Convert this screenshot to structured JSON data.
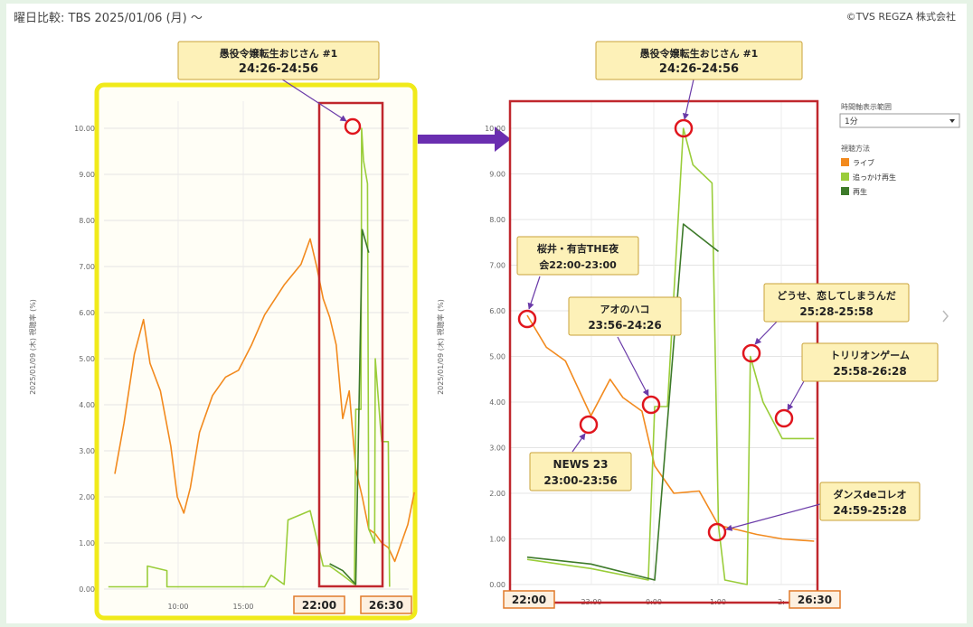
{
  "header": {
    "title": "曜日比較: TBS 2025/01/06 (月) ～",
    "copyright": "©TVS REGZA 株式会社"
  },
  "legend": {
    "range_label": "時間軸表示範囲",
    "range_value": "1分",
    "method_label": "視聴方法",
    "items": [
      {
        "name": "ライブ",
        "color": "#f28a1e"
      },
      {
        "name": "追っかけ再生",
        "color": "#9acd3a"
      },
      {
        "name": "再生",
        "color": "#3d7a2a"
      }
    ]
  },
  "left_chart": {
    "ylabel": "2025/01/09 (木)    視聴率 (%)",
    "yticks": [
      "0.00",
      "1.00",
      "2.00",
      "3.00",
      "4.00",
      "5.00",
      "6.00",
      "7.00",
      "8.00",
      "9.00",
      "10.00"
    ],
    "xticks": [
      "10:00",
      "15:00"
    ],
    "marker_start": "22:00",
    "marker_end": "26:30",
    "callout": {
      "line1": "愚役令嬢転生おじさん #1",
      "line2": "24:26-24:56"
    }
  },
  "right_chart": {
    "ylabel": "2025/01/09 (木)    視聴率 (%)",
    "yticks": [
      "0.00",
      "1.00",
      "2.00",
      "3.00",
      "4.00",
      "5.00",
      "6.00",
      "7.00",
      "8.00",
      "9.00",
      "10.00"
    ],
    "xticks": [
      "23:00",
      "0:00",
      "1:00",
      "2:"
    ],
    "marker_start": "22:00",
    "marker_end": "26:30",
    "callouts": [
      {
        "line1": "愚役令嬢転生おじさん #1",
        "line2": "24:26-24:56"
      },
      {
        "line1": "桜井・有吉THE夜",
        "line2": "会22:00-23:00"
      },
      {
        "line1": "アオのハコ",
        "line2": "23:56-24:26"
      },
      {
        "line1": "NEWS 23",
        "line2": "23:00-23:56"
      },
      {
        "line1": "どうせ、恋してしまうんだ",
        "line2": "25:28-25:58"
      },
      {
        "line1": "トリリオンゲーム",
        "line2": "25:58-26:28"
      },
      {
        "line1": "ダンスdeコレオ",
        "line2": "24:59-25:28"
      }
    ]
  },
  "chart_data": [
    {
      "type": "line",
      "ylabel": "視聴率 (%)",
      "ylim": [
        0,
        10.5
      ],
      "x_unit": "hours (5 = 5:00 start, 26.5 = 26:30)",
      "series": [
        {
          "name": "ライブ",
          "color": "#f28a1e",
          "points": [
            [
              5.5,
              2.5
            ],
            [
              6.2,
              3.6
            ],
            [
              7.0,
              5.1
            ],
            [
              7.7,
              5.85
            ],
            [
              8.2,
              4.9
            ],
            [
              9.0,
              4.3
            ],
            [
              9.8,
              3.1
            ],
            [
              10.3,
              2.0
            ],
            [
              10.8,
              1.65
            ],
            [
              11.3,
              2.2
            ],
            [
              12.0,
              3.4
            ],
            [
              13.0,
              4.2
            ],
            [
              14.0,
              4.6
            ],
            [
              15.0,
              4.75
            ],
            [
              16.0,
              5.3
            ],
            [
              17.0,
              5.95
            ],
            [
              18.5,
              6.6
            ],
            [
              19.8,
              7.05
            ],
            [
              20.5,
              7.6
            ],
            [
              21.0,
              7.0
            ],
            [
              21.5,
              6.3
            ],
            [
              22.0,
              5.9
            ],
            [
              22.5,
              5.3
            ],
            [
              23.0,
              3.7
            ],
            [
              23.5,
              4.3
            ],
            [
              24.0,
              2.6
            ],
            [
              24.5,
              2.0
            ],
            [
              25.0,
              1.3
            ],
            [
              25.5,
              1.2
            ],
            [
              26.0,
              1.0
            ],
            [
              26.5,
              0.9
            ],
            [
              27.0,
              0.6
            ],
            [
              28.0,
              1.4
            ],
            [
              28.5,
              2.1
            ]
          ]
        },
        {
          "name": "追っかけ再生",
          "color": "#9acd3a",
          "points": [
            [
              5.0,
              0.05
            ],
            [
              8.0,
              0.05
            ],
            [
              8.0,
              0.5
            ],
            [
              9.5,
              0.4
            ],
            [
              9.5,
              0.05
            ],
            [
              17.0,
              0.05
            ],
            [
              17.5,
              0.3
            ],
            [
              18.5,
              0.1
            ],
            [
              18.8,
              1.5
            ],
            [
              20.5,
              1.7
            ],
            [
              21.5,
              0.5
            ],
            [
              22.0,
              0.5
            ],
            [
              23.0,
              0.3
            ],
            [
              23.9,
              0.1
            ],
            [
              24.0,
              3.9
            ],
            [
              24.4,
              3.9
            ],
            [
              24.45,
              10.0
            ],
            [
              24.6,
              9.3
            ],
            [
              24.9,
              8.8
            ],
            [
              25.0,
              1.3
            ],
            [
              25.45,
              1.0
            ],
            [
              25.5,
              5.0
            ],
            [
              25.9,
              3.5
            ],
            [
              26.0,
              3.2
            ],
            [
              26.5,
              3.2
            ],
            [
              26.6,
              0.05
            ]
          ]
        },
        {
          "name": "再生",
          "color": "#3d7a2a",
          "points": [
            [
              22.0,
              0.55
            ],
            [
              23.0,
              0.4
            ],
            [
              24.0,
              0.1
            ],
            [
              24.5,
              7.8
            ],
            [
              25.0,
              7.3
            ]
          ]
        }
      ]
    },
    {
      "type": "line",
      "ylabel": "視聴率 (%)",
      "ylim": [
        0,
        10.5
      ],
      "x_unit": "hours (22:00 to 26:30)",
      "series": [
        {
          "name": "ライブ",
          "color": "#f28a1e",
          "points": [
            [
              22.0,
              5.9
            ],
            [
              22.3,
              5.2
            ],
            [
              22.6,
              4.9
            ],
            [
              23.0,
              3.7
            ],
            [
              23.3,
              4.5
            ],
            [
              23.5,
              4.1
            ],
            [
              23.8,
              3.8
            ],
            [
              24.0,
              2.6
            ],
            [
              24.3,
              2.0
            ],
            [
              24.7,
              2.05
            ],
            [
              25.0,
              1.3
            ],
            [
              25.3,
              1.2
            ],
            [
              25.6,
              1.1
            ],
            [
              26.0,
              1.0
            ],
            [
              26.5,
              0.95
            ]
          ]
        },
        {
          "name": "追っかけ再生",
          "color": "#9acd3a",
          "points": [
            [
              22.0,
              0.55
            ],
            [
              23.0,
              0.35
            ],
            [
              23.9,
              0.1
            ],
            [
              24.0,
              3.9
            ],
            [
              24.2,
              3.9
            ],
            [
              24.45,
              10.0
            ],
            [
              24.6,
              9.2
            ],
            [
              24.9,
              8.8
            ],
            [
              25.0,
              1.3
            ],
            [
              25.1,
              0.1
            ],
            [
              25.45,
              0.0
            ],
            [
              25.5,
              5.0
            ],
            [
              25.7,
              4.0
            ],
            [
              26.0,
              3.2
            ],
            [
              26.5,
              3.2
            ]
          ]
        },
        {
          "name": "再生",
          "color": "#3d7a2a",
          "points": [
            [
              22.0,
              0.6
            ],
            [
              23.0,
              0.45
            ],
            [
              24.0,
              0.1
            ],
            [
              24.45,
              7.9
            ],
            [
              25.0,
              7.3
            ]
          ]
        }
      ]
    }
  ]
}
